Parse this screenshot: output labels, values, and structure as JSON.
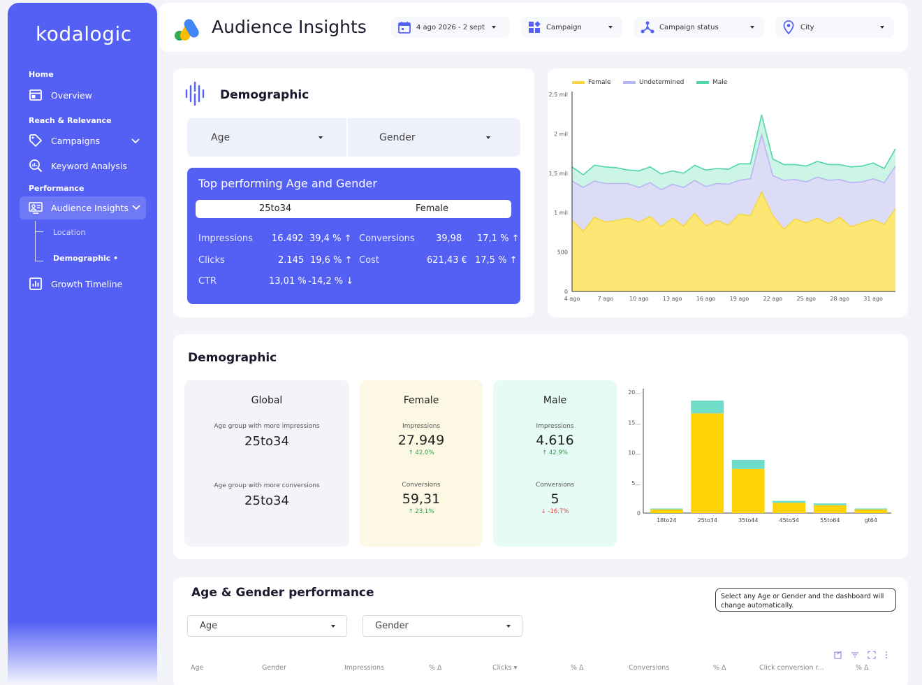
{
  "app": {
    "logo": "kodalogic"
  },
  "sidebar": {
    "sections": [
      "Home",
      "Reach & Relevance",
      "Performance"
    ],
    "items": [
      {
        "label": "Overview",
        "icon": "dashboard-icon"
      },
      {
        "label": "Campaigns",
        "icon": "tag-icon"
      },
      {
        "label": "Keyword Analysis",
        "icon": "search-analytics-icon"
      },
      {
        "label": "Audience Insights",
        "icon": "audience-icon"
      },
      {
        "label": "Growth Timeline",
        "icon": "bar-chart-icon"
      }
    ],
    "sub_items": [
      "Location",
      "Demographic •"
    ]
  },
  "header": {
    "title": "Audience Insights",
    "filters": [
      {
        "label": "4 ago 2026 - 2 sept 2",
        "icon": "calendar-icon"
      },
      {
        "label": "Campaign",
        "icon": "widgets-icon"
      },
      {
        "label": "Campaign status",
        "icon": "hub-icon"
      },
      {
        "label": "City",
        "icon": "location-pin-icon"
      }
    ]
  },
  "demographic_card": {
    "title": "Demographic",
    "selects": [
      "Age",
      "Gender"
    ],
    "top": {
      "title": "Top performing Age and Gender",
      "age": "25to34",
      "gender": "Female",
      "metrics": [
        {
          "label": "Impressions",
          "value": "16.492",
          "delta": "39,4 %",
          "dir": "up"
        },
        {
          "label": "Clicks",
          "value": "2.145",
          "delta": "19,6 %",
          "dir": "up"
        },
        {
          "label": "CTR",
          "value": "13,01 %",
          "delta": "-14,2 %",
          "dir": "down"
        },
        {
          "label": "Conversions",
          "value": "39,98",
          "delta": "17,1 %",
          "dir": "up"
        },
        {
          "label": "Cost",
          "value": "621,43 €",
          "delta": "17,5 %",
          "dir": "up"
        }
      ]
    }
  },
  "colors": {
    "accent": "#5460f3",
    "female": "#fde774",
    "undetermined": "#dcdcf7",
    "male": "#cdf5e6",
    "female_line": "#f5d742",
    "undetermined_line": "#b7b6f2",
    "male_line": "#4fd8a5",
    "bar_female": "#fed204",
    "bar_male": "#6edcc8",
    "up": "#2e9b46",
    "down": "#e63a3a"
  },
  "chart_data": [
    {
      "type": "area",
      "stacked": true,
      "legend": [
        "Female",
        "Undetermined",
        "Male"
      ],
      "legend_position": "top-left",
      "y_ticks": [
        "0",
        "500",
        "1 mil",
        "1,5 mil",
        "2 mil",
        "2,5 mil"
      ],
      "ylim": [
        0,
        2500
      ],
      "x_ticks": [
        "4 ago",
        "7 ago",
        "10 ago",
        "13 ago",
        "16 ago",
        "19 ago",
        "22 ago",
        "25 ago",
        "28 ago",
        "31 ago"
      ],
      "x_count": 30,
      "series": [
        {
          "name": "Female",
          "values": [
            900,
            760,
            940,
            880,
            900,
            930,
            880,
            950,
            820,
            930,
            830,
            990,
            830,
            900,
            840,
            980,
            960,
            1260,
            960,
            790,
            920,
            870,
            930,
            860,
            940,
            820,
            870,
            910,
            850,
            1050
          ]
        },
        {
          "name": "Undetermined",
          "values": [
            500,
            560,
            460,
            490,
            470,
            440,
            440,
            430,
            470,
            430,
            490,
            420,
            500,
            470,
            520,
            430,
            470,
            730,
            510,
            620,
            500,
            520,
            520,
            550,
            480,
            560,
            520,
            520,
            530,
            540
          ]
        },
        {
          "name": "Male",
          "values": [
            180,
            160,
            200,
            210,
            200,
            170,
            210,
            200,
            200,
            170,
            180,
            190,
            210,
            190,
            190,
            210,
            190,
            250,
            210,
            200,
            190,
            200,
            200,
            200,
            190,
            200,
            200,
            200,
            180,
            220
          ]
        }
      ]
    },
    {
      "type": "bar",
      "stacked": true,
      "categories": [
        "18to24",
        "25to34",
        "35to44",
        "45to54",
        "55to64",
        "gt64"
      ],
      "y_ticks": [
        "0",
        "5...",
        "10...",
        "15...",
        "20..."
      ],
      "ylim": [
        0,
        20000
      ],
      "series": [
        {
          "name": "Female",
          "values": [
            600,
            16500,
            7300,
            1700,
            1300,
            600
          ]
        },
        {
          "name": "Male",
          "values": [
            150,
            2100,
            1500,
            300,
            300,
            150
          ]
        }
      ]
    }
  ],
  "demographic_section": {
    "title": "Demographic",
    "global": {
      "title": "Global",
      "label1": "Age group with more impressions",
      "value1": "25to34",
      "label2": "Age group with more conversions",
      "value2": "25to34"
    },
    "female": {
      "title": "Female",
      "label1": "Impressions",
      "value1": "27.949",
      "delta1": "42.0%",
      "label2": "Conversions",
      "value2": "59,31",
      "delta2": "23.1%"
    },
    "male": {
      "title": "Male",
      "label1": "Impressions",
      "value1": "4.616",
      "delta1": "42.9%",
      "label2": "Conversions",
      "value2": "5",
      "delta2": "-16.7%"
    }
  },
  "age_gender": {
    "title": "Age & Gender performance",
    "selects": [
      "Age",
      "Gender"
    ],
    "note": "Select any Age or Gender and the dashboard will change automatically.",
    "columns": [
      "Age",
      "Gender",
      "Impressions",
      "% Δ",
      "Clicks",
      "% Δ",
      "Conversions",
      "% Δ",
      "Click conversion r...",
      "% Δ"
    ]
  }
}
